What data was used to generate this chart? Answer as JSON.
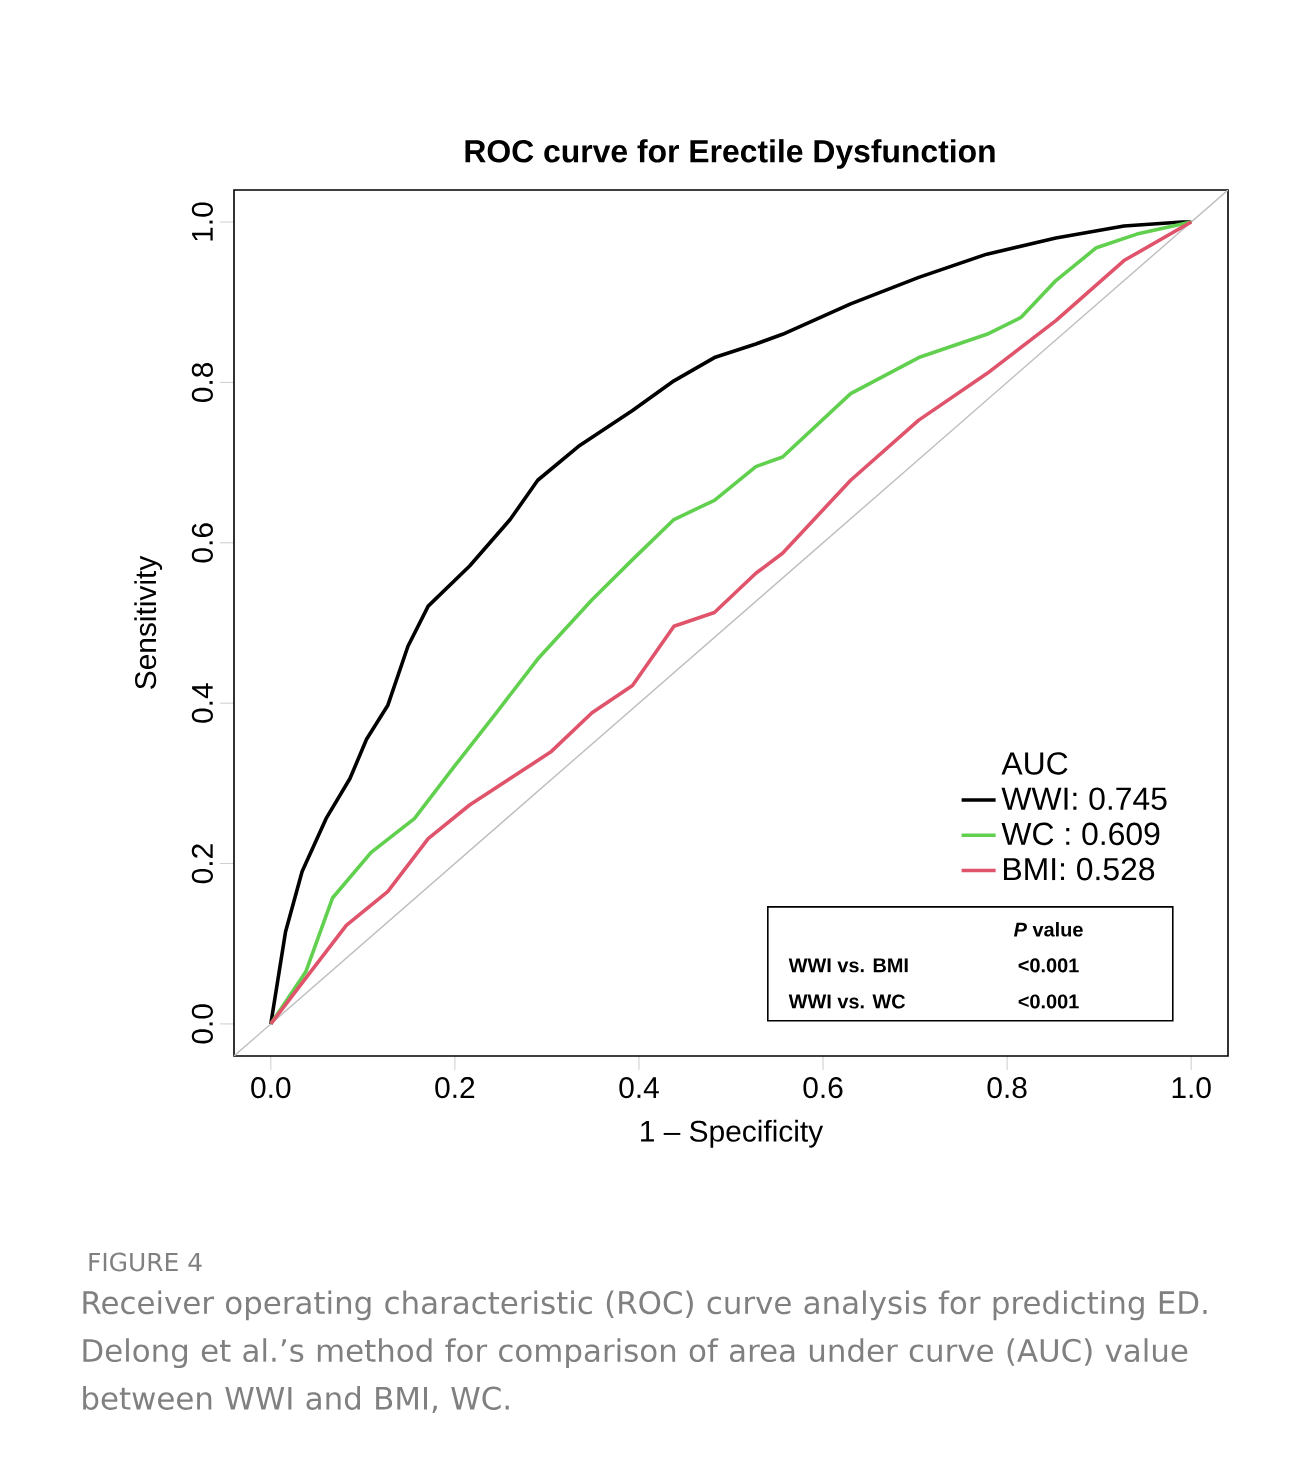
{
  "chart_data": {
    "type": "line",
    "title": "ROC curve for Erectile Dysfunction",
    "xlabel": "1 – Specificity",
    "ylabel": "Sensitivity",
    "xlim": [
      -0.04,
      1.04
    ],
    "ylim": [
      -0.04,
      1.04
    ],
    "xticks": [
      {
        "value": 0,
        "label": "0.0"
      },
      0.2,
      0.4,
      0.6,
      0.8,
      {
        "value": 1,
        "label": "1.0"
      }
    ],
    "yticks": [
      {
        "value": 0,
        "label": "0.0"
      },
      0.2,
      0.4,
      0.6,
      0.8,
      {
        "value": 1,
        "label": "1.0"
      }
    ],
    "legend": "bottom right",
    "legend_title": "AUC",
    "series": [
      {
        "name": "WWI: 0.745",
        "color": "#000000",
        "x": [
          0,
          0.016,
          0.034,
          0.06,
          0.086,
          0.104,
          0.127,
          0.149,
          0.171,
          0.216,
          0.26,
          0.29,
          0.334,
          0.393,
          0.438,
          0.482,
          0.527,
          0.556,
          0.63,
          0.704,
          0.778,
          0.853,
          0.927,
          0.99,
          1
        ],
        "values": [
          0,
          0.115,
          0.19,
          0.256,
          0.306,
          0.355,
          0.397,
          0.471,
          0.521,
          0.571,
          0.629,
          0.678,
          0.72,
          0.765,
          0.802,
          0.831,
          0.848,
          0.86,
          0.898,
          0.931,
          0.96,
          0.98,
          0.995,
          1,
          1
        ]
      },
      {
        "name": "WC : 0.609",
        "color": "#61d04f",
        "x": [
          0,
          0.038,
          0.067,
          0.109,
          0.156,
          0.2,
          0.245,
          0.29,
          0.349,
          0.393,
          0.438,
          0.482,
          0.527,
          0.556,
          0.63,
          0.704,
          0.778,
          0.815,
          0.853,
          0.897,
          0.941,
          1
        ],
        "values": [
          0,
          0.065,
          0.157,
          0.214,
          0.256,
          0.322,
          0.388,
          0.455,
          0.529,
          0.579,
          0.629,
          0.653,
          0.695,
          0.707,
          0.786,
          0.831,
          0.86,
          0.881,
          0.927,
          0.968,
          0.985,
          1
        ]
      },
      {
        "name": "BMI: 0.528",
        "color": "#df536b",
        "x": [
          0,
          0.038,
          0.082,
          0.127,
          0.171,
          0.216,
          0.26,
          0.304,
          0.349,
          0.393,
          0.438,
          0.482,
          0.527,
          0.556,
          0.63,
          0.704,
          0.778,
          0.853,
          0.927,
          1
        ],
        "values": [
          0,
          0.057,
          0.123,
          0.165,
          0.231,
          0.273,
          0.306,
          0.339,
          0.388,
          0.422,
          0.496,
          0.513,
          0.562,
          0.587,
          0.678,
          0.753,
          0.811,
          0.877,
          0.952,
          1
        ]
      },
      {
        "color": "#bebebe",
        "x": [
          -0.04,
          1.04
        ],
        "values": [
          -0.04,
          1.04
        ]
      }
    ],
    "annotations": [
      "*P* value",
      "WWI vs. BMI",
      "<0.001",
      "WWI vs. WC",
      "<0.001",
      "FIGURE 4",
      "Receiver operating characteristic (ROC) curve analysis for predicting ED. Delong et al.’s method for comparison of area under curve (AUC) value between WWI and BMI, WC."
    ]
  }
}
